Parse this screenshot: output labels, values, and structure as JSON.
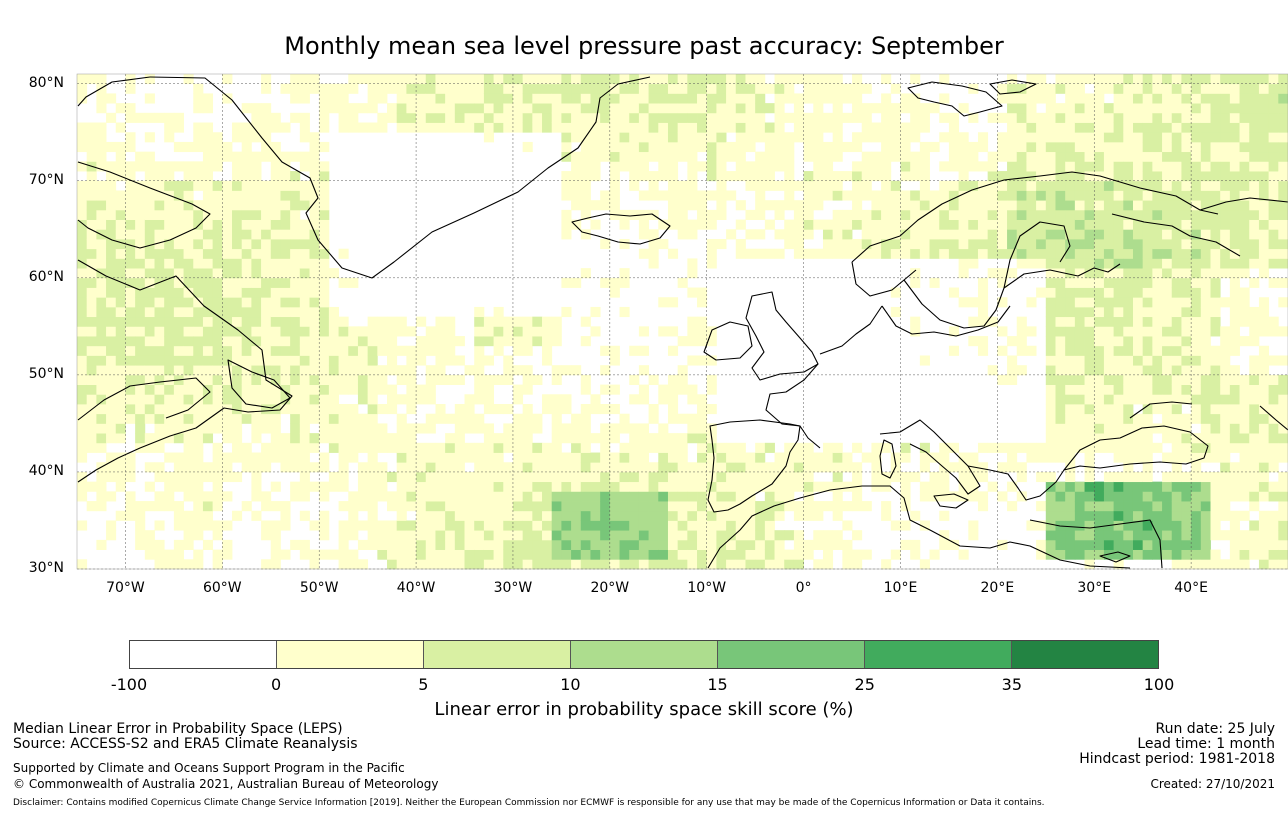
{
  "title": "Monthly mean sea level pressure past accuracy: September",
  "map": {
    "lat_labels": [
      "80°N",
      "70°N",
      "60°N",
      "50°N",
      "40°N",
      "30°N"
    ],
    "lon_labels": [
      "70°W",
      "60°W",
      "50°W",
      "40°W",
      "30°W",
      "20°W",
      "10°W",
      "0°",
      "10°E",
      "20°E",
      "30°E",
      "40°E"
    ],
    "lat_values": [
      80,
      70,
      60,
      50,
      40,
      30
    ],
    "lon_values": [
      -70,
      -60,
      -50,
      -40,
      -30,
      -20,
      -10,
      0,
      10,
      20,
      30,
      40
    ],
    "extent": {
      "lon_min": -75,
      "lon_max": 50,
      "lat_min": 30,
      "lat_max": 81
    }
  },
  "colorbar": {
    "ticks": [
      "-100",
      "0",
      "5",
      "10",
      "15",
      "25",
      "35",
      "100"
    ],
    "colors": [
      "#ffffff",
      "#ffffcc",
      "#d9f0a3",
      "#addd8e",
      "#78c679",
      "#41ab5d",
      "#238443"
    ],
    "label": "Linear error in probability space skill score (%)"
  },
  "info": {
    "leps": "Median Linear Error in Probability Space (LEPS)",
    "source": "Source: ACCESS-S2 and ERA5 Climate Reanalysis",
    "supported": "Supported by Climate and Oceans Support Program in the Pacific",
    "copyright": "© Commonwealth of Australia 2021, Australian Bureau of Meteorology",
    "run_date": "Run date: 25 July",
    "lead_time": "Lead time: 1 month",
    "hindcast": "Hindcast period: 1981-2018",
    "created": "Created: 27/10/2021",
    "disclaimer": "Disclaimer: Contains modified Copernicus Climate Change Service Information [2019]. Neither the European Commission nor ECMWF is responsible for any use that may be made of the Copernicus Information or Data it contains."
  }
}
